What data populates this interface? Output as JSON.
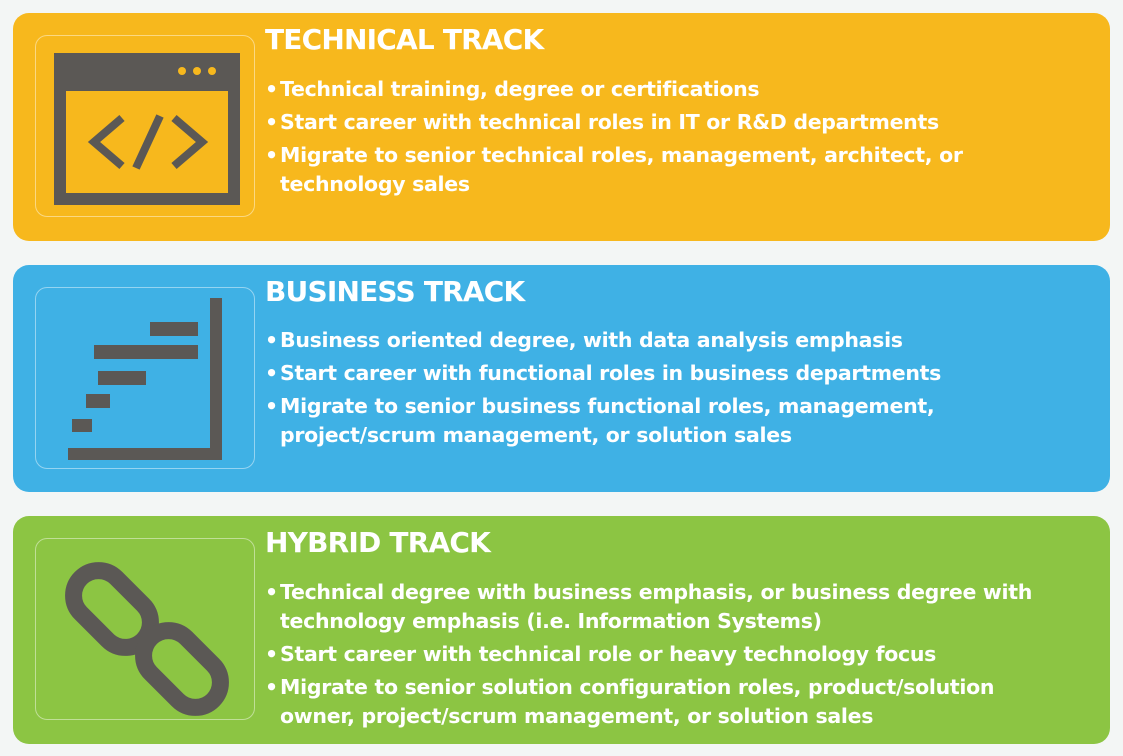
{
  "colors": {
    "technical": "#f7b81d",
    "business": "#3fb1e5",
    "hybrid": "#8cc543",
    "icon_dark": "#5b5855",
    "text": "#ffffff"
  },
  "tracks": [
    {
      "title": "TECHNICAL TRACK",
      "icon": "code-window-icon",
      "bullets": [
        "Technical training, degree or certifications",
        "Start career with technical roles in IT or R&D departments",
        "Migrate to senior technical roles, management, architect, or",
        "technology sales"
      ]
    },
    {
      "title": "BUSINESS TRACK",
      "icon": "gantt-chart-icon",
      "bullets": [
        "Business oriented degree, with data analysis emphasis",
        "Start career with functional roles in business departments",
        "Migrate to senior business functional roles, management,",
        "project/scrum management, or solution sales"
      ]
    },
    {
      "title": "HYBRID TRACK",
      "icon": "chain-link-icon",
      "bullets": [
        "Technical degree with business emphasis, or business degree with",
        "technology emphasis (i.e. Information Systems)",
        "Start career with technical role or heavy technology focus",
        "Migrate to senior solution configuration roles, product/solution",
        "owner, project/scrum management, or solution sales"
      ]
    }
  ],
  "bullet_glyph": "•"
}
